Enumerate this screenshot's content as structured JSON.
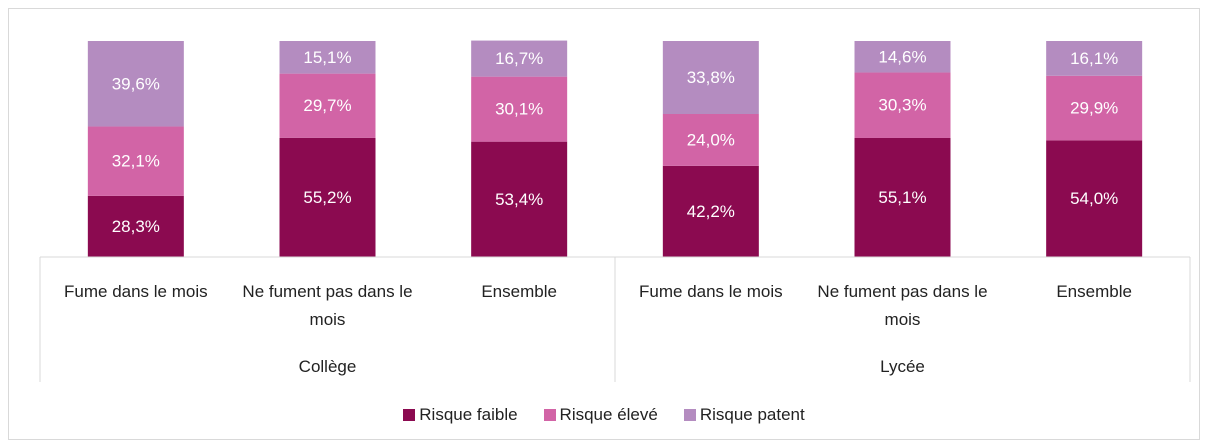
{
  "chart_data": {
    "type": "stacked_bar_100",
    "groups": [
      {
        "label": "Collège",
        "categories": [
          "Fume dans le mois",
          "Ne fument pas dans le mois",
          "Ensemble"
        ]
      },
      {
        "label": "Lycée",
        "categories": [
          "Fume dans le mois",
          "Ne fument pas dans le mois",
          "Ensemble"
        ]
      }
    ],
    "ylim": [
      0,
      100
    ],
    "series": [
      {
        "name": "Risque faible",
        "color": "#8b0a50",
        "values": [
          28.3,
          55.2,
          53.4,
          42.2,
          55.1,
          54.0
        ],
        "value_labels": [
          "28,3%",
          "55,2%",
          "53,4%",
          "42,2%",
          "55,1%",
          "54,0%"
        ]
      },
      {
        "name": "Risque élevé",
        "color": "#d264a6",
        "values": [
          32.1,
          29.7,
          30.1,
          24.0,
          30.3,
          29.9
        ],
        "value_labels": [
          "32,1%",
          "29,7%",
          "30,1%",
          "24,0%",
          "30,3%",
          "29,9%"
        ]
      },
      {
        "name": "Risque patent",
        "color": "#b48cc0",
        "values": [
          39.6,
          15.1,
          16.7,
          33.8,
          14.6,
          16.1
        ],
        "value_labels": [
          "39,6%",
          "15,1%",
          "16,7%",
          "33,8%",
          "14,6%",
          "16,1%"
        ]
      }
    ],
    "legend": "bottom"
  }
}
